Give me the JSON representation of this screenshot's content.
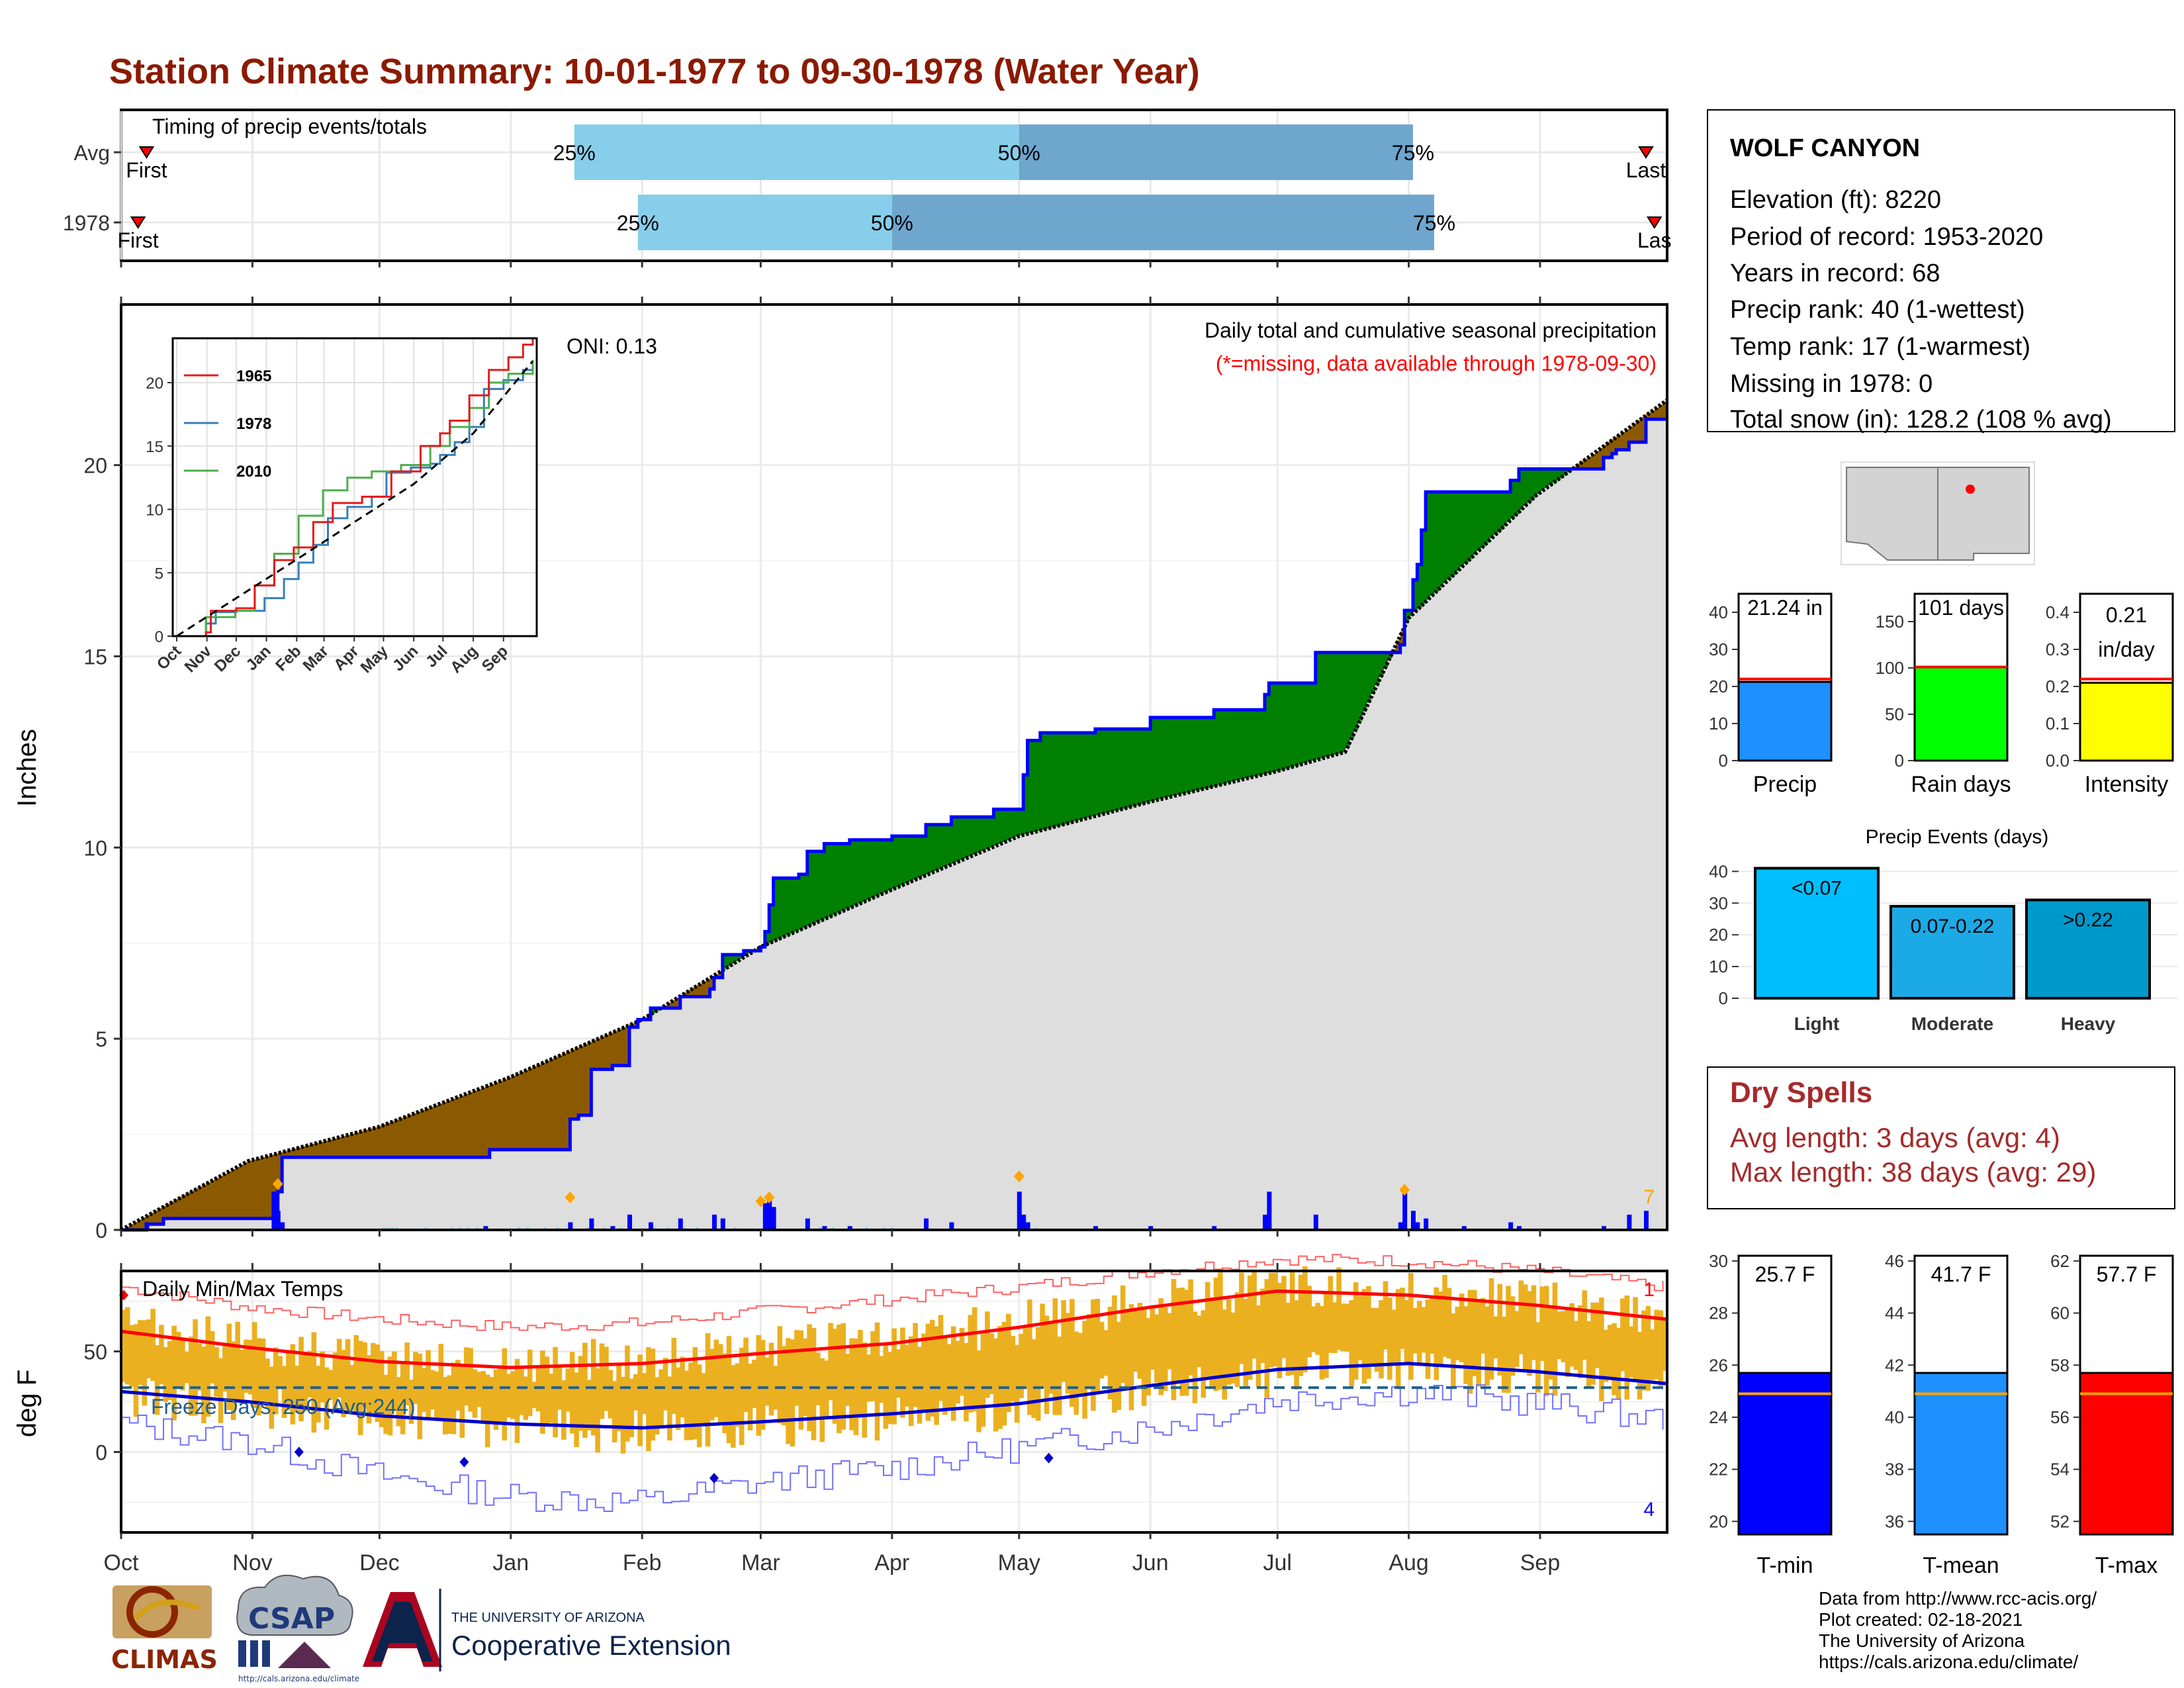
{
  "title": "Station Climate Summary: 10-01-1977 to 09-30-1978 (Water Year)",
  "colors": {
    "title": "#8B1A00",
    "brown": "#8B5A00",
    "green": "#008000",
    "blue": "#0000FF",
    "light_blue": "#87CEEB",
    "mid_blue": "#6EA6CE",
    "gray_fill": "#DEDEDE",
    "gold": "#EBB020",
    "red": "#FF0000",
    "dry_red": "#A52A2A"
  },
  "month_labels": [
    "Oct",
    "Nov",
    "Dec",
    "Jan",
    "Feb",
    "Mar",
    "Apr",
    "May",
    "Jun",
    "Jul",
    "Aug",
    "Sep"
  ],
  "timing": {
    "label": "Timing of precip events/totals",
    "rows": [
      {
        "name": "Avg",
        "first": "First",
        "last": "Last",
        "p25": "25%",
        "p50": "50%",
        "p75": "75%",
        "first_day": 6,
        "d25": 107,
        "d50": 212,
        "d75": 305,
        "last_day": 360
      },
      {
        "name": "1978",
        "first": "First",
        "last": "Las",
        "p25": "25%",
        "p50": "50%",
        "p75": "75%",
        "first_day": 4,
        "d25": 122,
        "d50": 182,
        "d75": 310,
        "last_day": 362
      }
    ]
  },
  "main_chart": {
    "ylabel": "Inches",
    "yticks": [
      "0",
      "5",
      "10",
      "15",
      "20"
    ],
    "ylim": [
      0,
      24.2
    ],
    "oni": "ONI: 0.13",
    "header": "Daily total and cumulative seasonal precipitation",
    "missing_note": "(*=missing, data available through 1978-09-30)",
    "corner_count": "7",
    "avg_cum_points": [
      [
        0,
        0
      ],
      [
        30,
        1.8
      ],
      [
        61,
        2.7
      ],
      [
        92,
        4.0
      ],
      [
        123,
        5.5
      ],
      [
        151,
        7.4
      ],
      [
        182,
        8.9
      ],
      [
        212,
        10.3
      ],
      [
        243,
        11.2
      ],
      [
        273,
        12.0
      ],
      [
        289,
        12.5
      ],
      [
        304,
        16.0
      ],
      [
        334,
        19.2
      ],
      [
        365,
        21.7
      ]
    ],
    "y1978_steps": [
      [
        0,
        0
      ],
      [
        6,
        0.15
      ],
      [
        10,
        0.3
      ],
      [
        36,
        0.3
      ],
      [
        37,
        1.0
      ],
      [
        38,
        1.9
      ],
      [
        61,
        1.9
      ],
      [
        62,
        1.9
      ],
      [
        78,
        1.9
      ],
      [
        86,
        1.9
      ],
      [
        87,
        2.1
      ],
      [
        105,
        2.1
      ],
      [
        106,
        2.9
      ],
      [
        108,
        3.0
      ],
      [
        111,
        4.2
      ],
      [
        116,
        4.3
      ],
      [
        120,
        5.3
      ],
      [
        122,
        5.5
      ],
      [
        125,
        5.8
      ],
      [
        132,
        6.1
      ],
      [
        139,
        6.3
      ],
      [
        140,
        6.6
      ],
      [
        142,
        7.2
      ],
      [
        147,
        7.3
      ],
      [
        151,
        7.4
      ],
      [
        152,
        7.8
      ],
      [
        153,
        8.5
      ],
      [
        154,
        9.2
      ],
      [
        160,
        9.3
      ],
      [
        162,
        9.9
      ],
      [
        166,
        10.1
      ],
      [
        172,
        10.2
      ],
      [
        182,
        10.3
      ],
      [
        190,
        10.6
      ],
      [
        196,
        10.8
      ],
      [
        206,
        11.0
      ],
      [
        212,
        11.0
      ],
      [
        213,
        11.9
      ],
      [
        214,
        12.8
      ],
      [
        217,
        13.0
      ],
      [
        230,
        13.1
      ],
      [
        243,
        13.4
      ],
      [
        258,
        13.6
      ],
      [
        268,
        13.6
      ],
      [
        270,
        14.0
      ],
      [
        271,
        14.3
      ],
      [
        281,
        14.3
      ],
      [
        282,
        15.1
      ],
      [
        301,
        15.1
      ],
      [
        302,
        15.3
      ],
      [
        303,
        16.2
      ],
      [
        305,
        17.0
      ],
      [
        306,
        17.4
      ],
      [
        307,
        18.3
      ],
      [
        308,
        19.3
      ],
      [
        317,
        19.3
      ],
      [
        328,
        19.6
      ],
      [
        330,
        19.9
      ],
      [
        350,
        20.2
      ],
      [
        352,
        20.3
      ],
      [
        353,
        20.4
      ],
      [
        356,
        20.6
      ],
      [
        360,
        21.2
      ],
      [
        365,
        21.2
      ]
    ],
    "daily_bars": [
      [
        6,
        0.2
      ],
      [
        36,
        1.0
      ],
      [
        37,
        0.5
      ],
      [
        38,
        0.2
      ],
      [
        86,
        0.1
      ],
      [
        106,
        0.2
      ],
      [
        111,
        0.3
      ],
      [
        116,
        0.1
      ],
      [
        120,
        0.4
      ],
      [
        125,
        0.2
      ],
      [
        132,
        0.3
      ],
      [
        140,
        0.4
      ],
      [
        142,
        0.3
      ],
      [
        152,
        0.7
      ],
      [
        153,
        0.8
      ],
      [
        154,
        0.6
      ],
      [
        162,
        0.3
      ],
      [
        166,
        0.1
      ],
      [
        172,
        0.1
      ],
      [
        190,
        0.3
      ],
      [
        196,
        0.2
      ],
      [
        212,
        1.0
      ],
      [
        213,
        0.4
      ],
      [
        214,
        0.2
      ],
      [
        230,
        0.1
      ],
      [
        243,
        0.1
      ],
      [
        258,
        0.1
      ],
      [
        270,
        0.4
      ],
      [
        271,
        1.0
      ],
      [
        282,
        0.4
      ],
      [
        302,
        0.2
      ],
      [
        303,
        1.0
      ],
      [
        305,
        0.5
      ],
      [
        306,
        0.2
      ],
      [
        308,
        0.3
      ],
      [
        317,
        0.1
      ],
      [
        328,
        0.2
      ],
      [
        330,
        0.1
      ],
      [
        350,
        0.1
      ],
      [
        356,
        0.4
      ],
      [
        360,
        0.5
      ]
    ],
    "diamonds": [
      [
        37,
        1.2
      ],
      [
        106,
        0.85
      ],
      [
        151,
        0.75
      ],
      [
        153,
        0.85
      ],
      [
        212,
        1.4
      ],
      [
        303,
        1.05
      ]
    ]
  },
  "inset": {
    "legend": [
      {
        "name": "1965",
        "color": "#E41A1C"
      },
      {
        "name": "1978",
        "color": "#377EB8"
      },
      {
        "name": "2010",
        "color": "#4DAF4A"
      }
    ],
    "yticks": [
      "0",
      "5",
      "10",
      "15",
      "20"
    ],
    "xlabels": [
      "Oct",
      "Nov",
      "Dec",
      "Jan",
      "Feb",
      "Mar",
      "Apr",
      "May",
      "Jun",
      "Jul",
      "Aug",
      "Sep"
    ],
    "ylim": [
      0,
      23.5
    ],
    "series": {
      "1965": [
        [
          0,
          0
        ],
        [
          30,
          0.3
        ],
        [
          35,
          2
        ],
        [
          61,
          2.2
        ],
        [
          80,
          4
        ],
        [
          100,
          6
        ],
        [
          120,
          7
        ],
        [
          140,
          9
        ],
        [
          160,
          10.5
        ],
        [
          190,
          11
        ],
        [
          220,
          13
        ],
        [
          250,
          15
        ],
        [
          270,
          16
        ],
        [
          280,
          17
        ],
        [
          300,
          19
        ],
        [
          320,
          21
        ],
        [
          340,
          22
        ],
        [
          355,
          23
        ],
        [
          365,
          23.5
        ]
      ],
      "1978": [
        [
          0,
          0
        ],
        [
          30,
          1
        ],
        [
          40,
          1.9
        ],
        [
          61,
          2
        ],
        [
          90,
          3
        ],
        [
          110,
          4.5
        ],
        [
          125,
          5.8
        ],
        [
          140,
          7.2
        ],
        [
          155,
          9.3
        ],
        [
          175,
          10.2
        ],
        [
          200,
          11
        ],
        [
          215,
          12.9
        ],
        [
          240,
          13.3
        ],
        [
          260,
          13.6
        ],
        [
          270,
          14.3
        ],
        [
          285,
          15.3
        ],
        [
          300,
          16.5
        ],
        [
          315,
          19.5
        ],
        [
          335,
          20.2
        ],
        [
          355,
          21
        ],
        [
          365,
          21.3
        ]
      ],
      "2010": [
        [
          0,
          0
        ],
        [
          30,
          1.5
        ],
        [
          60,
          2
        ],
        [
          80,
          4
        ],
        [
          100,
          6.5
        ],
        [
          125,
          9.5
        ],
        [
          150,
          11.5
        ],
        [
          175,
          12.5
        ],
        [
          200,
          13
        ],
        [
          230,
          13.5
        ],
        [
          260,
          15
        ],
        [
          280,
          16.5
        ],
        [
          300,
          18
        ],
        [
          320,
          20
        ],
        [
          340,
          20.7
        ],
        [
          365,
          21.8
        ]
      ],
      "avg": [
        [
          0,
          0
        ],
        [
          61,
          3
        ],
        [
          122,
          6
        ],
        [
          182,
          9
        ],
        [
          243,
          12
        ],
        [
          304,
          16
        ],
        [
          365,
          21.7
        ]
      ]
    }
  },
  "temp_chart": {
    "ylabel": "deg F",
    "yticks": [
      "0",
      "50"
    ],
    "ylim": [
      -40,
      90
    ],
    "label": "Daily Min/Max Temps",
    "freeze_days": "Freeze Days: 250 (Avg:244)",
    "freeze_line": 32,
    "top_count": "1",
    "bottom_count": "4",
    "avg_max": [
      [
        0,
        60
      ],
      [
        30,
        52
      ],
      [
        61,
        45
      ],
      [
        92,
        42
      ],
      [
        123,
        44
      ],
      [
        151,
        49
      ],
      [
        182,
        54
      ],
      [
        212,
        62
      ],
      [
        243,
        72
      ],
      [
        273,
        80
      ],
      [
        304,
        78
      ],
      [
        334,
        73
      ],
      [
        365,
        66
      ]
    ],
    "avg_min": [
      [
        0,
        30
      ],
      [
        30,
        25
      ],
      [
        61,
        18
      ],
      [
        92,
        14
      ],
      [
        123,
        12
      ],
      [
        151,
        15
      ],
      [
        182,
        19
      ],
      [
        212,
        24
      ],
      [
        243,
        33
      ],
      [
        273,
        41
      ],
      [
        304,
        44
      ],
      [
        334,
        40
      ],
      [
        365,
        34
      ]
    ],
    "rec_max": [
      [
        0,
        82
      ],
      [
        30,
        72
      ],
      [
        61,
        66
      ],
      [
        92,
        62
      ],
      [
        123,
        64
      ],
      [
        151,
        70
      ],
      [
        182,
        76
      ],
      [
        212,
        82
      ],
      [
        243,
        90
      ],
      [
        273,
        96
      ],
      [
        304,
        95
      ],
      [
        334,
        90
      ],
      [
        365,
        82
      ]
    ],
    "rec_min": [
      [
        0,
        14
      ],
      [
        30,
        5
      ],
      [
        61,
        -12
      ],
      [
        92,
        -22
      ],
      [
        123,
        -25
      ],
      [
        151,
        -15
      ],
      [
        182,
        -8
      ],
      [
        212,
        2
      ],
      [
        243,
        12
      ],
      [
        273,
        26
      ],
      [
        304,
        30
      ],
      [
        334,
        24
      ],
      [
        365,
        16
      ]
    ],
    "record_points": [
      [
        0,
        78,
        "max"
      ],
      [
        42,
        0,
        "min"
      ],
      [
        81,
        -5,
        "min"
      ],
      [
        140,
        -13,
        "min"
      ],
      [
        219,
        -3,
        "min"
      ]
    ]
  },
  "station": {
    "name": "WOLF CANYON",
    "lines": [
      "Elevation (ft): 8220",
      "Period of record: 1953-2020",
      "Years in record: 68",
      "Precip rank: 40 (1-wettest)",
      "Temp rank: 17 (1-warmest)",
      "Missing in 1978: 0",
      "Total snow (in): 128.2 (108 % avg)"
    ]
  },
  "summary_bars": [
    {
      "label": "Precip",
      "value_text": "21.24 in",
      "value": 21.24,
      "avg": 22,
      "ymax": 45,
      "ticks": [
        "0",
        "10",
        "20",
        "30",
        "40"
      ],
      "tickvals": [
        0,
        10,
        20,
        30,
        40
      ],
      "color": "#1E90FF"
    },
    {
      "label": "Rain days",
      "value_text": "101 days",
      "value": 101,
      "avg": 101,
      "ymax": 180,
      "ticks": [
        "0",
        "50",
        "100",
        "150"
      ],
      "tickvals": [
        0,
        50,
        100,
        150
      ],
      "color": "#00FF00"
    },
    {
      "label": "Intensity",
      "value_text": "0.21",
      "value_text2": "in/day",
      "value": 0.21,
      "avg": 0.22,
      "ymax": 0.45,
      "ticks": [
        "0.0",
        "0.1",
        "0.2",
        "0.3",
        "0.4"
      ],
      "tickvals": [
        0,
        0.1,
        0.2,
        0.3,
        0.4
      ],
      "color": "#FFFF00"
    }
  ],
  "events": {
    "title": "Precip Events (days)",
    "ticks": [
      "0",
      "10",
      "20",
      "30",
      "40"
    ],
    "tickvals": [
      0,
      10,
      20,
      30,
      40
    ],
    "ymax": 43,
    "bars": [
      {
        "label": "Light",
        "text": "<0.07",
        "value": 41,
        "color": "#00BFFF"
      },
      {
        "label": "Moderate",
        "text": "0.07-0.22",
        "value": 29,
        "color": "#1CAAE6"
      },
      {
        "label": "Heavy",
        "text": ">0.22",
        "value": 31,
        "color": "#0099CC"
      }
    ]
  },
  "dry_spells": {
    "title": "Dry Spells",
    "avg_line": "Avg length: 3 days (avg: 4)",
    "max_line": "Max length: 38 days (avg: 29)"
  },
  "temp_bars": [
    {
      "label": "T-min",
      "value_text": "25.7 F",
      "value": 25.7,
      "avg": 24.9,
      "ymin": 19.5,
      "ymax": 30.2,
      "ticks": [
        "20",
        "22",
        "24",
        "26",
        "28",
        "30"
      ],
      "tickvals": [
        20,
        22,
        24,
        26,
        28,
        30
      ],
      "color": "#0000FF"
    },
    {
      "label": "T-mean",
      "value_text": "41.7 F",
      "value": 41.7,
      "avg": 40.9,
      "ymin": 35.5,
      "ymax": 46.2,
      "ticks": [
        "36",
        "38",
        "40",
        "42",
        "44",
        "46"
      ],
      "tickvals": [
        36,
        38,
        40,
        42,
        44,
        46
      ],
      "color": "#1E90FF"
    },
    {
      "label": "T-max",
      "value_text": "57.7 F",
      "value": 57.7,
      "avg": 56.9,
      "ymin": 51.5,
      "ymax": 62.2,
      "ticks": [
        "52",
        "54",
        "56",
        "58",
        "60",
        "62"
      ],
      "tickvals": [
        52,
        54,
        56,
        58,
        60,
        62
      ],
      "color": "#FF0000"
    }
  ],
  "credits": [
    "Data from http://www.rcc-acis.org/",
    "Plot created: 02-18-2021",
    "The University of Arizona",
    "https://cals.arizona.edu/climate/"
  ],
  "logos": {
    "climas": "CLIMAS",
    "csap": "CSAP",
    "csap_url": "http://cals.arizona.edu/climate",
    "ua_top": "THE UNIVERSITY OF ARIZONA",
    "ua_bottom": "Cooperative Extension"
  }
}
